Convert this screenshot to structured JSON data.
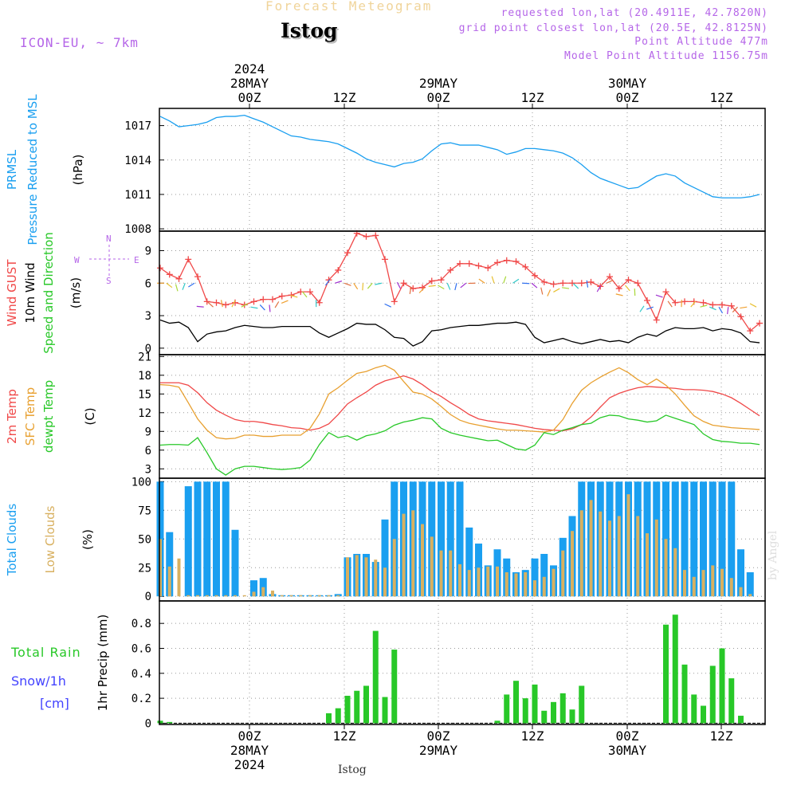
{
  "header": {
    "title": "Forecast Meteogram",
    "station": "Istog",
    "model": "ICON-EU, ~ 7km",
    "requested": "requested lon,lat (20.4911E, 42.7820N)",
    "grid_point": "grid point closest lon,lat (20.5E, 42.8125N)",
    "point_altitude": "Point Altitude 477m",
    "model_altitude": "Model Point Altitude 1156.75m"
  },
  "footer": {
    "station": "Istog",
    "credit": "by Angel"
  },
  "colors": {
    "prmsl": "#1a9ff0",
    "gust": "#f04848",
    "wind10m": "#000000",
    "temp2m": "#f04848",
    "sfc": "#e8a030",
    "dewpt": "#28c828",
    "total_clouds": "#1a9ff0",
    "low_clouds": "#d8b060",
    "rain": "#28c828",
    "snow": "#4444ff",
    "compass": "#b566e8"
  },
  "chart_data": [
    {
      "type": "line",
      "panel": "pressure",
      "ylabels": [
        "PRMSL",
        "Pressure Reduced to MSL",
        "(hPa)"
      ],
      "yticks": [
        1008,
        1011,
        1014,
        1017
      ],
      "ylim": [
        1007.8,
        1018.5
      ],
      "xlim": [
        0,
        64
      ],
      "grid": true,
      "series": [
        {
          "values": [
            1017.8,
            1017.4,
            1016.9,
            1017.0,
            1017.1,
            1017.3,
            1017.7,
            1017.8,
            1017.8,
            1017.9,
            1017.6,
            1017.3,
            1016.9,
            1016.5,
            1016.1,
            1016.0,
            1015.8,
            1015.7,
            1015.6,
            1015.4,
            1015.0,
            1014.6,
            1014.1,
            1013.8,
            1013.6,
            1013.4,
            1013.7,
            1013.8,
            1014.1,
            1014.8,
            1015.4,
            1015.5,
            1015.3,
            1015.3,
            1015.3,
            1015.1,
            1014.9,
            1014.5,
            1014.7,
            1015.0,
            1015.0,
            1014.9,
            1014.8,
            1014.6,
            1014.2,
            1013.6,
            1012.9,
            1012.4,
            1012.1,
            1011.8,
            1011.5,
            1011.6,
            1012.1,
            1012.6,
            1012.8,
            1012.6,
            1012.0,
            1011.6,
            1011.2,
            1010.8,
            1010.7,
            1010.7,
            1010.7,
            1010.8,
            1011.0
          ]
        }
      ]
    },
    {
      "type": "line",
      "panel": "wind",
      "ylabels": [
        "Wind GUST",
        "10m Wind",
        "Speed and Direction",
        "(m/s)"
      ],
      "compass": [
        "N",
        "S",
        "W",
        "E"
      ],
      "yticks": [
        0,
        3,
        6,
        9
      ],
      "ylim": [
        -0.6,
        10.8
      ],
      "xlim": [
        0,
        64
      ],
      "grid": true,
      "series": [
        {
          "name": "Wind GUST",
          "marker": "+",
          "values": [
            7.4,
            6.8,
            6.4,
            8.2,
            6.6,
            4.3,
            4.2,
            4.0,
            4.2,
            4.0,
            4.3,
            4.5,
            4.5,
            4.8,
            4.9,
            5.2,
            5.2,
            4.2,
            6.3,
            7.2,
            8.8,
            10.6,
            10.3,
            10.4,
            8.2,
            4.3,
            6.0,
            5.5,
            5.6,
            6.2,
            6.3,
            7.2,
            7.8,
            7.8,
            7.6,
            7.4,
            7.9,
            8.1,
            8.0,
            7.5,
            6.7,
            6.1,
            5.9,
            6.0,
            6.0,
            6.0,
            6.1,
            5.7,
            6.6,
            5.5,
            6.3,
            6.0,
            4.4,
            2.6,
            5.2,
            4.2,
            4.3,
            4.3,
            4.2,
            4.0,
            4.0,
            3.9,
            2.9,
            1.6,
            2.3
          ]
        },
        {
          "name": "10m Wind",
          "values": [
            2.6,
            2.3,
            2.4,
            1.9,
            0.6,
            1.3,
            1.5,
            1.6,
            1.9,
            2.1,
            2.0,
            1.9,
            1.9,
            2.0,
            2.0,
            2.0,
            2.0,
            1.4,
            1.0,
            1.4,
            1.8,
            2.3,
            2.2,
            2.2,
            1.7,
            1.0,
            0.9,
            0.2,
            0.6,
            1.6,
            1.7,
            1.9,
            2.0,
            2.1,
            2.1,
            2.2,
            2.3,
            2.3,
            2.4,
            2.2,
            1.0,
            0.5,
            0.7,
            0.9,
            0.6,
            0.4,
            0.6,
            0.8,
            0.6,
            0.7,
            0.5,
            1.0,
            1.3,
            1.1,
            1.6,
            1.9,
            1.8,
            1.8,
            1.9,
            1.6,
            1.8,
            1.7,
            1.4,
            0.6,
            0.5
          ]
        }
      ]
    },
    {
      "type": "line",
      "panel": "temperature",
      "ylabels": [
        "2m Temp",
        "SFC Temp",
        "dewpt Temp",
        "(C)"
      ],
      "yticks": [
        3,
        6,
        9,
        12,
        15,
        18,
        21
      ],
      "ylim": [
        1.5,
        21.3
      ],
      "xlim": [
        0,
        64
      ],
      "grid": true,
      "series": [
        {
          "name": "2m Temp",
          "values": [
            16.8,
            16.8,
            16.8,
            16.4,
            15.2,
            13.6,
            12.4,
            11.6,
            10.9,
            10.6,
            10.6,
            10.4,
            10.1,
            9.9,
            9.6,
            9.5,
            9.2,
            9.5,
            10.2,
            11.7,
            13.4,
            14.4,
            15.3,
            16.4,
            17.1,
            17.5,
            17.9,
            17.4,
            16.5,
            15.4,
            14.6,
            13.6,
            12.7,
            11.7,
            11.0,
            10.7,
            10.5,
            10.3,
            10.1,
            9.8,
            9.5,
            9.3,
            9.2,
            9.1,
            9.4,
            10.1,
            11.3,
            12.9,
            14.4,
            15.1,
            15.6,
            16.0,
            16.2,
            16.1,
            16.0,
            15.9,
            15.7,
            15.7,
            15.6,
            15.4,
            15.0,
            14.4,
            13.5,
            12.5,
            11.5
          ]
        },
        {
          "name": "SFC Temp",
          "values": [
            16.5,
            16.4,
            16.1,
            13.6,
            11.0,
            9.2,
            8.0,
            7.8,
            7.9,
            8.4,
            8.4,
            8.2,
            8.2,
            8.4,
            8.4,
            8.4,
            9.5,
            11.8,
            15.0,
            16.0,
            17.2,
            18.3,
            18.6,
            19.2,
            19.6,
            18.8,
            17.0,
            15.3,
            15.0,
            14.2,
            13.0,
            11.7,
            10.8,
            10.3,
            10.0,
            9.7,
            9.4,
            9.2,
            9.2,
            9.1,
            9.0,
            8.9,
            9.2,
            10.9,
            13.5,
            15.6,
            16.8,
            17.7,
            18.5,
            19.2,
            18.4,
            17.3,
            16.5,
            17.4,
            16.4,
            15.0,
            13.2,
            11.5,
            10.6,
            10.0,
            9.8,
            9.6,
            9.5,
            9.4,
            9.3
          ]
        },
        {
          "name": "dewpt Temp",
          "values": [
            6.8,
            6.9,
            6.9,
            6.8,
            8.0,
            5.6,
            3.0,
            2.0,
            3.0,
            3.4,
            3.4,
            3.2,
            3.0,
            2.9,
            3.0,
            3.2,
            4.4,
            6.9,
            8.8,
            8.0,
            8.3,
            7.6,
            8.3,
            8.6,
            9.1,
            10.0,
            10.5,
            10.8,
            11.2,
            11.0,
            9.5,
            8.8,
            8.4,
            8.1,
            7.8,
            7.5,
            7.6,
            6.9,
            6.2,
            6.0,
            6.8,
            8.8,
            8.5,
            9.2,
            9.6,
            10.1,
            10.3,
            11.2,
            11.6,
            11.5,
            11.0,
            10.8,
            10.5,
            10.7,
            11.6,
            11.1,
            10.6,
            10.1,
            8.6,
            7.7,
            7.4,
            7.3,
            7.1,
            7.1,
            6.9
          ]
        }
      ]
    },
    {
      "type": "bar",
      "panel": "clouds",
      "ylabels": [
        "Total Clouds",
        "Low Clouds",
        "(%)"
      ],
      "yticks": [
        0,
        25,
        50,
        75,
        100
      ],
      "ylim": [
        -4,
        103
      ],
      "xlim": [
        0,
        64
      ],
      "grid": true,
      "series": [
        {
          "name": "Total Clouds",
          "values": [
            100,
            56,
            0,
            96,
            100,
            100,
            100,
            100,
            58,
            0,
            14,
            16,
            2,
            1,
            1,
            1,
            1,
            1,
            1,
            2,
            34,
            37,
            37,
            30,
            67,
            100,
            100,
            100,
            100,
            100,
            100,
            100,
            100,
            60,
            46,
            27,
            41,
            33,
            21,
            23,
            33,
            37,
            27,
            51,
            70,
            100,
            100,
            100,
            100,
            100,
            100,
            100,
            100,
            100,
            100,
            100,
            100,
            100,
            100,
            100,
            100,
            100,
            41,
            21,
            0
          ]
        },
        {
          "name": "Low Clouds",
          "values": [
            50,
            26,
            33,
            1,
            1,
            1,
            1,
            1,
            1,
            1,
            4,
            8,
            5,
            1,
            1,
            1,
            1,
            1,
            1,
            1,
            34,
            36,
            34,
            32,
            25,
            50,
            72,
            75,
            63,
            52,
            40,
            40,
            28,
            23,
            25,
            26,
            26,
            21,
            20,
            21,
            14,
            17,
            24,
            40,
            57,
            75,
            84,
            74,
            66,
            70,
            89,
            70,
            55,
            67,
            50,
            42,
            23,
            17,
            23,
            27,
            24,
            16,
            8,
            2,
            0
          ]
        }
      ]
    },
    {
      "type": "bar",
      "panel": "precipitation",
      "ylabels": [
        "Total Rain",
        "Snow/1h",
        "[cm]",
        "1hr Precip (mm)"
      ],
      "yticks": [
        0,
        0.2,
        0.4,
        0.6,
        0.8
      ],
      "ylim": [
        -0.01,
        0.98
      ],
      "xlim": [
        0,
        64
      ],
      "grid": true,
      "series": [
        {
          "name": "Total Rain",
          "values": [
            0.02,
            0.01,
            0,
            0,
            0,
            0,
            0,
            0,
            0,
            0,
            0,
            0,
            0,
            0,
            0,
            0,
            0,
            0,
            0,
            0,
            0,
            0,
            0,
            0,
            0,
            0,
            0,
            0,
            0,
            0,
            0,
            0,
            0,
            0,
            0,
            0,
            0,
            0,
            0,
            0,
            0,
            0,
            0,
            0,
            0,
            0,
            0,
            0,
            0,
            0,
            0,
            0,
            0,
            0,
            0,
            0,
            0,
            0,
            0,
            0,
            0,
            0,
            0,
            0,
            0
          ]
        }
      ],
      "rain_bars": [
        [
          18,
          0.08
        ],
        [
          19,
          0.12
        ],
        [
          20,
          0.22
        ],
        [
          21,
          0.26
        ],
        [
          22,
          0.3
        ],
        [
          23,
          0.74
        ],
        [
          24,
          0.21
        ],
        [
          25,
          0.59
        ],
        [
          36,
          0.02
        ],
        [
          37,
          0.23
        ],
        [
          38,
          0.34
        ],
        [
          39,
          0.2
        ],
        [
          40,
          0.31
        ],
        [
          41,
          0.1
        ],
        [
          42,
          0.17
        ],
        [
          43,
          0.24
        ],
        [
          44,
          0.11
        ],
        [
          45,
          0.3
        ],
        [
          54,
          0.79
        ],
        [
          55,
          0.87
        ],
        [
          56,
          0.47
        ],
        [
          57,
          0.23
        ],
        [
          58,
          0.14
        ],
        [
          59,
          0.46
        ],
        [
          60,
          0.6
        ],
        [
          61,
          0.36
        ],
        [
          62,
          0.06
        ]
      ]
    }
  ],
  "time_axis": {
    "top_labels": [
      {
        "line1": "2024",
        "line2": "28MAY",
        "line3": "00Z"
      },
      {
        "line1": "",
        "line2": "",
        "line3": "12Z"
      },
      {
        "line1": "",
        "line2": "29MAY",
        "line3": "00Z"
      },
      {
        "line1": "",
        "line2": "",
        "line3": "12Z"
      },
      {
        "line1": "",
        "line2": "30MAY",
        "line3": "00Z"
      },
      {
        "line1": "",
        "line2": "",
        "line3": "12Z"
      }
    ],
    "bottom_labels": [
      {
        "line1": "00Z",
        "line2": "28MAY",
        "line3": "2024"
      },
      {
        "line1": "12Z",
        "line2": "",
        "line3": ""
      },
      {
        "line1": "00Z",
        "line2": "29MAY",
        "line3": ""
      },
      {
        "line1": "12Z",
        "line2": "",
        "line3": ""
      },
      {
        "line1": "00Z",
        "line2": "30MAY",
        "line3": ""
      },
      {
        "line1": "12Z",
        "line2": "",
        "line3": ""
      }
    ]
  }
}
